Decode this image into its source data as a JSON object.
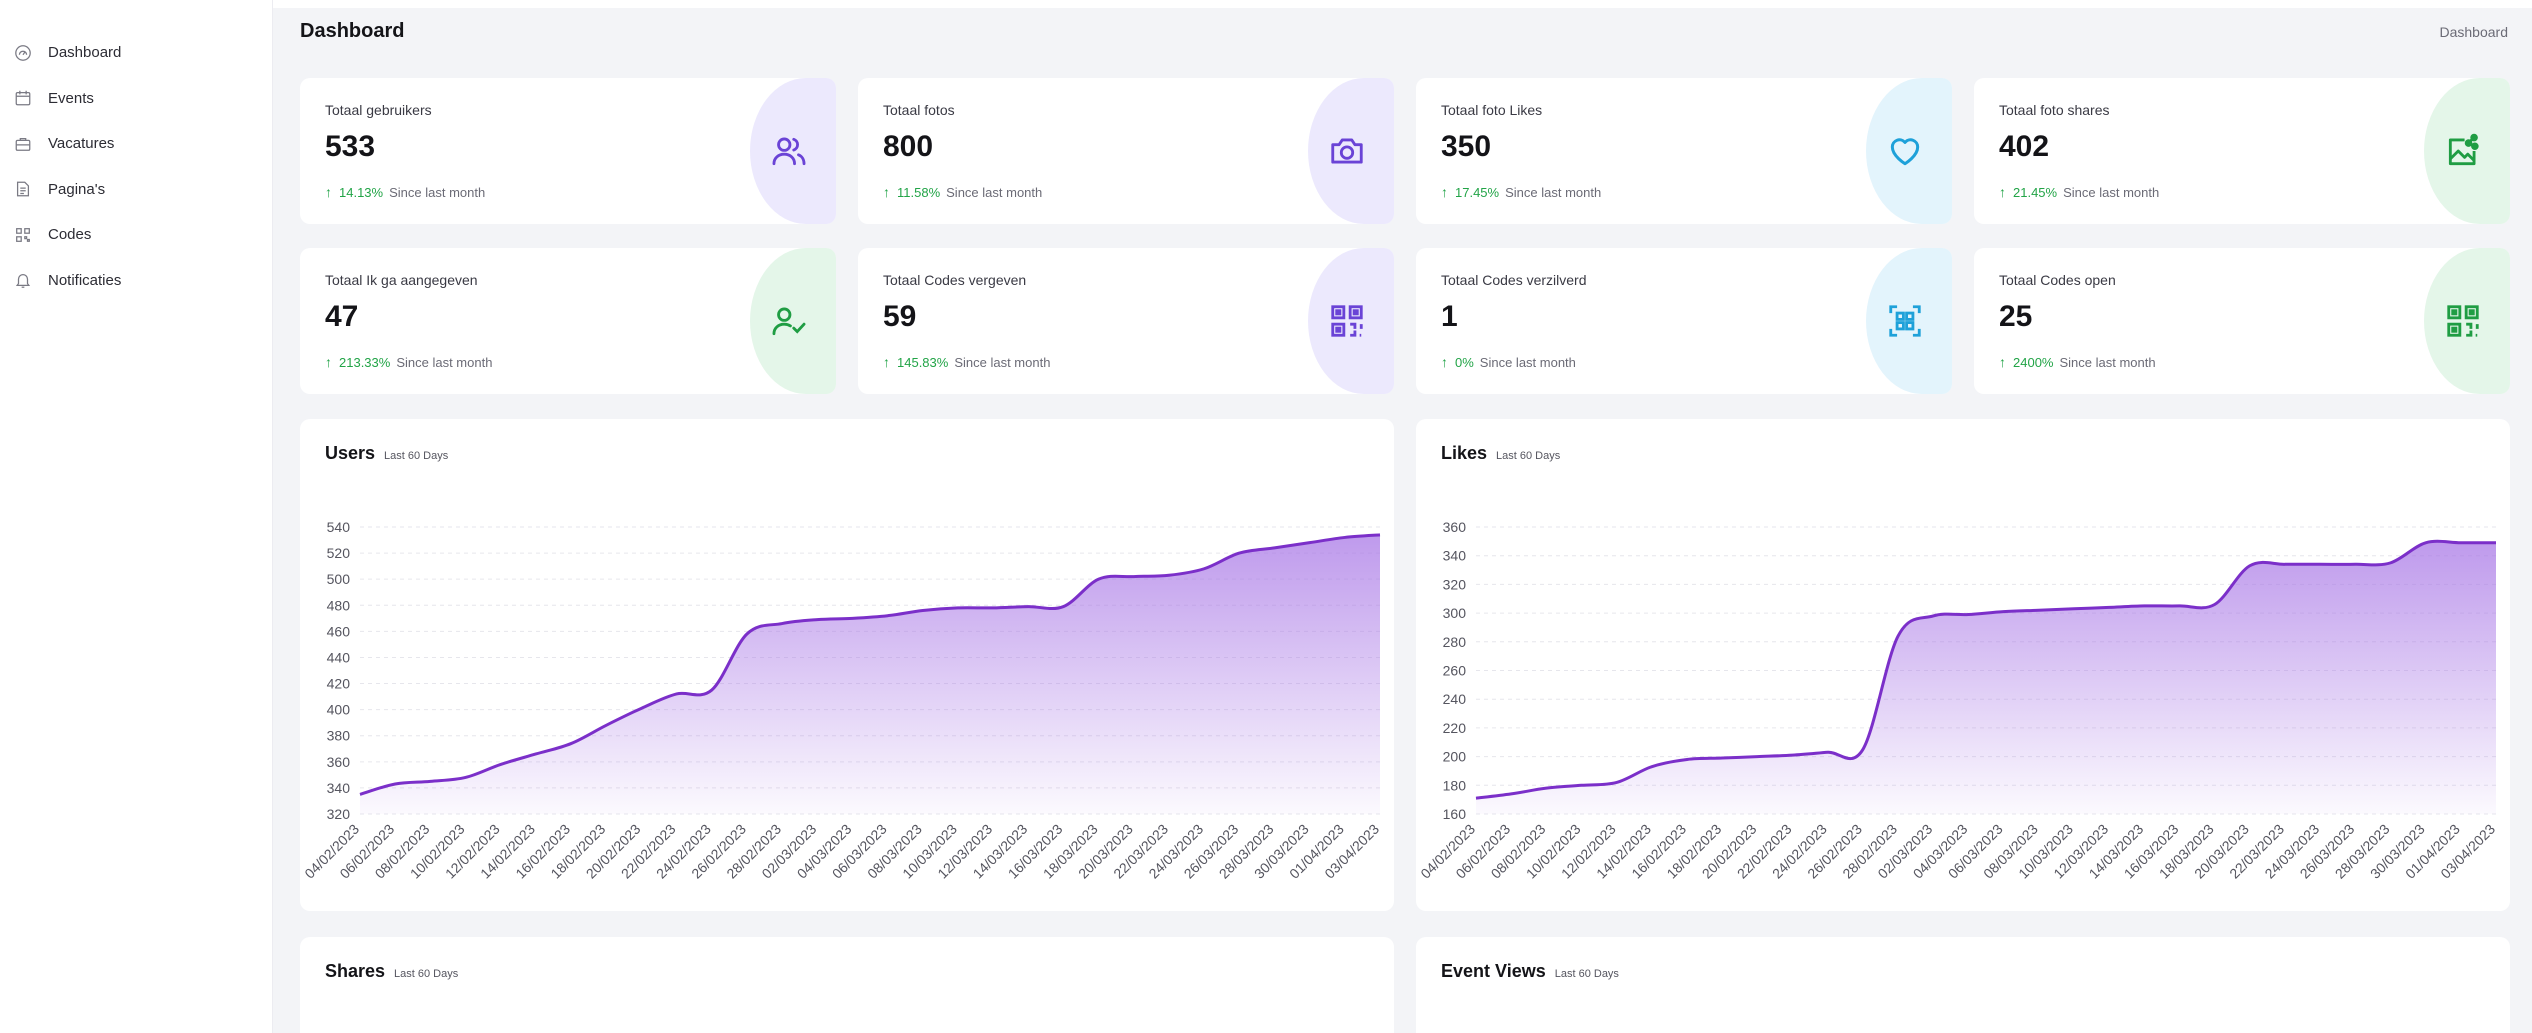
{
  "sidebar": {
    "items": [
      {
        "label": "Dashboard",
        "icon": "dashboard-icon"
      },
      {
        "label": "Events",
        "icon": "calendar-icon"
      },
      {
        "label": "Vacatures",
        "icon": "briefcase-icon"
      },
      {
        "label": "Pagina's",
        "icon": "page-icon"
      },
      {
        "label": "Codes",
        "icon": "qr-code-icon"
      },
      {
        "label": "Notificaties",
        "icon": "bell-icon"
      }
    ]
  },
  "header": {
    "title": "Dashboard",
    "breadcrumb": "Dashboard"
  },
  "stats": [
    {
      "label": "Totaal gebruikers",
      "value": "533",
      "pct": "14.13%",
      "since": "Since last month",
      "icon": "users-icon",
      "color": "#6a43d6"
    },
    {
      "label": "Totaal fotos",
      "value": "800",
      "pct": "11.58%",
      "since": "Since last month",
      "icon": "camera-icon",
      "color": "#6a43d6"
    },
    {
      "label": "Totaal foto Likes",
      "value": "350",
      "pct": "17.45%",
      "since": "Since last month",
      "icon": "heart-icon",
      "color": "#1ea1d9"
    },
    {
      "label": "Totaal foto shares",
      "value": "402",
      "pct": "21.45%",
      "since": "Since last month",
      "icon": "share-image-icon",
      "color": "#1f9d43"
    },
    {
      "label": "Totaal Ik ga aangegeven",
      "value": "47",
      "pct": "213.33%",
      "since": "Since last month",
      "icon": "user-check-icon",
      "color": "#1f9d43"
    },
    {
      "label": "Totaal Codes vergeven",
      "value": "59",
      "pct": "145.83%",
      "since": "Since last month",
      "icon": "qr-code-icon",
      "color": "#6a43d6"
    },
    {
      "label": "Totaal Codes verzilverd",
      "value": "1",
      "pct": "0%",
      "since": "Since last month",
      "icon": "qr-code-icon",
      "color": "#1ea1d9"
    },
    {
      "label": "Totaal Codes open",
      "value": "25",
      "pct": "2400%",
      "since": "Since last month",
      "icon": "qr-code-icon",
      "color": "#1f9d43"
    }
  ],
  "panels": {
    "users": {
      "title": "Users",
      "subtitle": "Last 60 Days"
    },
    "likes": {
      "title": "Likes",
      "subtitle": "Last 60 Days"
    },
    "shares": {
      "title": "Shares",
      "subtitle": "Last 60 Days"
    },
    "event_views": {
      "title": "Event Views",
      "subtitle": "Last 60 Days"
    }
  },
  "colors": {
    "accent": "#7b2fc9",
    "area_top": "#a978e6",
    "green": "#22a447"
  },
  "chart_data": [
    {
      "type": "area",
      "title": "Users",
      "subtitle": "Last 60 Days",
      "x": [
        "04/02/2023",
        "06/02/2023",
        "08/02/2023",
        "10/02/2023",
        "12/02/2023",
        "14/02/2023",
        "16/02/2023",
        "18/02/2023",
        "20/02/2023",
        "22/02/2023",
        "24/02/2023",
        "26/02/2023",
        "28/02/2023",
        "02/03/2023",
        "04/03/2023",
        "06/03/2023",
        "08/03/2023",
        "10/03/2023",
        "12/03/2023",
        "14/03/2023",
        "16/03/2023",
        "18/03/2023",
        "20/03/2023",
        "22/03/2023",
        "24/03/2023",
        "26/03/2023",
        "28/03/2023",
        "30/03/2023",
        "01/04/2023",
        "03/04/2023"
      ],
      "y_ticks": [
        320,
        340,
        360,
        380,
        400,
        420,
        440,
        460,
        480,
        500,
        520,
        540
      ],
      "ylim": [
        320,
        540
      ],
      "series": [
        {
          "values": [
            335,
            343,
            345,
            348,
            358,
            366,
            374,
            388,
            401,
            412,
            415,
            458,
            466,
            469,
            470,
            472,
            476,
            478,
            478,
            479,
            479,
            500,
            502,
            503,
            508,
            520,
            524,
            528,
            532,
            534
          ]
        }
      ],
      "grid": true
    },
    {
      "type": "area",
      "title": "Likes",
      "subtitle": "Last 60 Days",
      "x": [
        "04/02/2023",
        "06/02/2023",
        "08/02/2023",
        "10/02/2023",
        "12/02/2023",
        "14/02/2023",
        "16/02/2023",
        "18/02/2023",
        "20/02/2023",
        "22/02/2023",
        "24/02/2023",
        "26/02/2023",
        "28/02/2023",
        "02/03/2023",
        "04/03/2023",
        "06/03/2023",
        "08/03/2023",
        "10/03/2023",
        "12/03/2023",
        "14/03/2023",
        "16/03/2023",
        "18/03/2023",
        "20/03/2023",
        "22/03/2023",
        "24/03/2023",
        "26/03/2023",
        "28/03/2023",
        "30/03/2023",
        "01/04/2023",
        "03/04/2023"
      ],
      "y_ticks": [
        160,
        180,
        200,
        220,
        240,
        260,
        280,
        300,
        320,
        340,
        360
      ],
      "ylim": [
        160,
        360
      ],
      "series": [
        {
          "values": [
            171,
            174,
            178,
            180,
            182,
            193,
            198,
            199,
            200,
            201,
            203,
            205,
            284,
            298,
            299,
            301,
            302,
            303,
            304,
            305,
            305,
            306,
            333,
            334,
            334,
            334,
            335,
            349,
            349,
            349
          ]
        }
      ],
      "grid": true
    }
  ]
}
